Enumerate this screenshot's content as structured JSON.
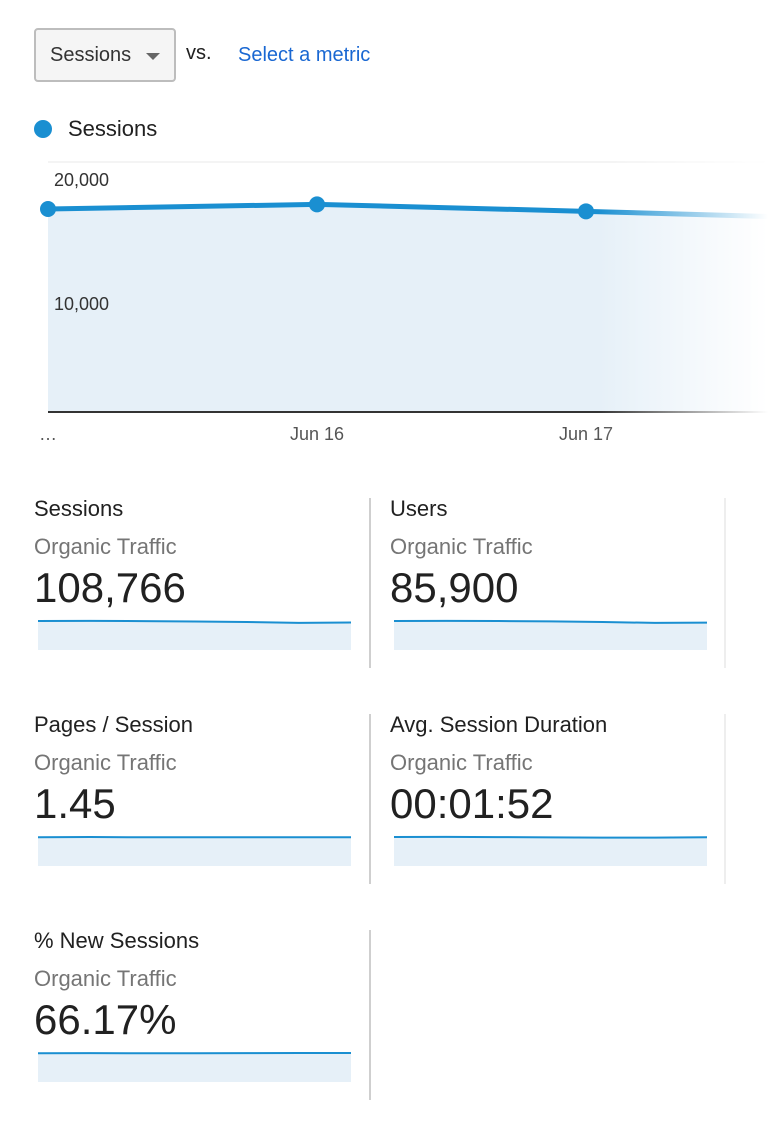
{
  "controls": {
    "metric_select": "Sessions",
    "vs_label": "vs.",
    "select_metric_link": "Select a metric"
  },
  "colors": {
    "accent": "#1a8fd1",
    "link": "#1967d2",
    "area_fill": "#e6f0f8"
  },
  "legend": {
    "series_label": "Sessions"
  },
  "chart_data": {
    "type": "line",
    "x": [
      "…",
      "Jun 16",
      "Jun 17",
      ""
    ],
    "series": [
      {
        "name": "Sessions",
        "values": [
          17500,
          17900,
          17300,
          16800
        ]
      }
    ],
    "ylim": [
      0,
      20000
    ],
    "yticks": [
      "20,000",
      "10,000"
    ],
    "xticks": [
      "…",
      "Jun 16",
      "Jun 17"
    ],
    "grid": true
  },
  "cards": [
    {
      "title": "Sessions",
      "subtitle": "Organic Traffic",
      "value": "108,766",
      "spark": [
        0.5,
        0.52,
        0.48,
        0.42,
        0.34,
        0.18,
        0.24
      ]
    },
    {
      "title": "Users",
      "subtitle": "Organic Traffic",
      "value": "85,900",
      "spark": [
        0.5,
        0.53,
        0.49,
        0.43,
        0.34,
        0.18,
        0.22
      ]
    },
    {
      "title": "Pages / Session",
      "subtitle": "Organic Traffic",
      "value": "1.45",
      "spark": [
        0.45,
        0.5,
        0.45,
        0.45,
        0.46,
        0.45,
        0.45
      ]
    },
    {
      "title": "Avg. Session Duration",
      "subtitle": "Organic Traffic",
      "value": "00:01:52",
      "spark": [
        0.5,
        0.52,
        0.48,
        0.43,
        0.4,
        0.4,
        0.45
      ]
    },
    {
      "title": "% New Sessions",
      "subtitle": "Organic Traffic",
      "value": "66.17%",
      "spark": [
        0.45,
        0.47,
        0.45,
        0.45,
        0.48,
        0.49,
        0.5
      ]
    }
  ]
}
